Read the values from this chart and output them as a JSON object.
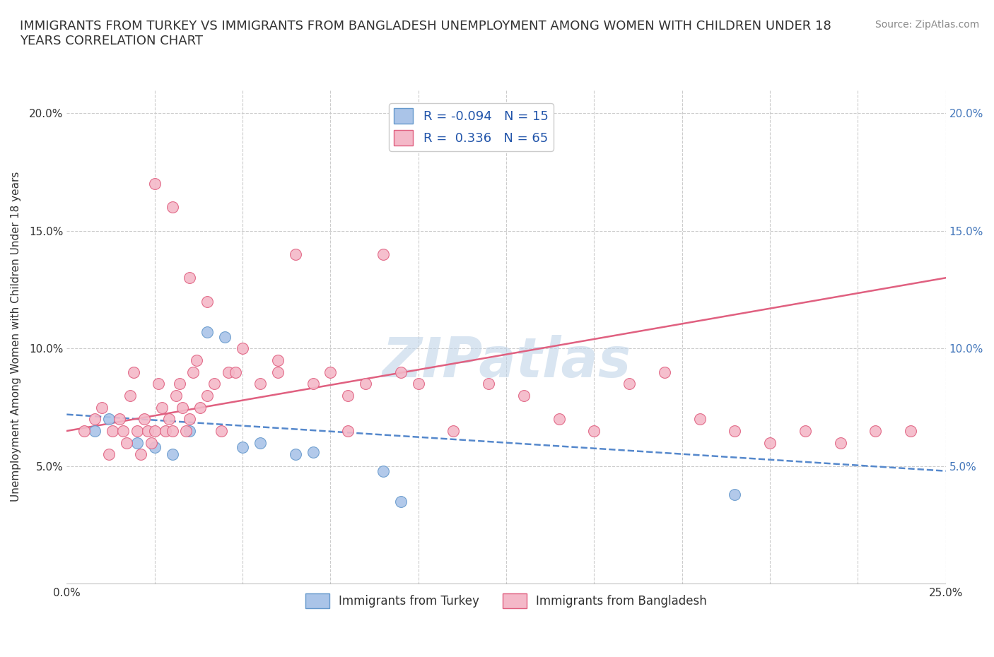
{
  "title": "IMMIGRANTS FROM TURKEY VS IMMIGRANTS FROM BANGLADESH UNEMPLOYMENT AMONG WOMEN WITH CHILDREN UNDER 18\nYEARS CORRELATION CHART",
  "source_text": "Source: ZipAtlas.com",
  "ylabel": "Unemployment Among Women with Children Under 18 years",
  "xlim": [
    0.0,
    0.25
  ],
  "ylim": [
    0.0,
    0.21
  ],
  "xticks": [
    0.0,
    0.025,
    0.05,
    0.075,
    0.1,
    0.125,
    0.15,
    0.175,
    0.2,
    0.225,
    0.25
  ],
  "xticklabels": [
    "0.0%",
    "",
    "",
    "",
    "",
    "",
    "",
    "",
    "",
    "",
    "25.0%"
  ],
  "yticks": [
    0.0,
    0.05,
    0.1,
    0.15,
    0.2
  ],
  "yticklabels": [
    "",
    "5.0%",
    "10.0%",
    "15.0%",
    "20.0%"
  ],
  "background_color": "#ffffff",
  "grid_color": "#cccccc",
  "watermark_text": "ZIPatlas",
  "watermark_color": "#c0d4e8",
  "series": [
    {
      "name": "Immigrants from Turkey",
      "R": -0.094,
      "N": 15,
      "color": "#aac4e8",
      "edge_color": "#6699cc",
      "x": [
        0.008,
        0.012,
        0.02,
        0.025,
        0.03,
        0.035,
        0.04,
        0.045,
        0.05,
        0.055,
        0.065,
        0.07,
        0.09,
        0.095,
        0.19
      ],
      "y": [
        0.065,
        0.07,
        0.06,
        0.058,
        0.055,
        0.065,
        0.107,
        0.105,
        0.058,
        0.06,
        0.055,
        0.056,
        0.048,
        0.035,
        0.038
      ],
      "trend_x": [
        0.0,
        0.25
      ],
      "trend_y": [
        0.072,
        0.048
      ],
      "trend_style": "dashed",
      "trend_color": "#5588cc"
    },
    {
      "name": "Immigrants from Bangladesh",
      "R": 0.336,
      "N": 65,
      "color": "#f4b8c8",
      "edge_color": "#e06080",
      "x": [
        0.005,
        0.008,
        0.01,
        0.012,
        0.013,
        0.015,
        0.016,
        0.017,
        0.018,
        0.019,
        0.02,
        0.021,
        0.022,
        0.023,
        0.024,
        0.025,
        0.026,
        0.027,
        0.028,
        0.029,
        0.03,
        0.031,
        0.032,
        0.033,
        0.034,
        0.035,
        0.036,
        0.037,
        0.038,
        0.04,
        0.042,
        0.044,
        0.046,
        0.048,
        0.05,
        0.055,
        0.06,
        0.065,
        0.07,
        0.075,
        0.08,
        0.085,
        0.09,
        0.095,
        0.1,
        0.11,
        0.12,
        0.13,
        0.14,
        0.15,
        0.16,
        0.17,
        0.18,
        0.19,
        0.2,
        0.21,
        0.22,
        0.23,
        0.24,
        0.025,
        0.03,
        0.035,
        0.04,
        0.06,
        0.08
      ],
      "y": [
        0.065,
        0.07,
        0.075,
        0.055,
        0.065,
        0.07,
        0.065,
        0.06,
        0.08,
        0.09,
        0.065,
        0.055,
        0.07,
        0.065,
        0.06,
        0.065,
        0.085,
        0.075,
        0.065,
        0.07,
        0.065,
        0.08,
        0.085,
        0.075,
        0.065,
        0.07,
        0.09,
        0.095,
        0.075,
        0.08,
        0.085,
        0.065,
        0.09,
        0.09,
        0.1,
        0.085,
        0.09,
        0.14,
        0.085,
        0.09,
        0.08,
        0.085,
        0.14,
        0.09,
        0.085,
        0.065,
        0.085,
        0.08,
        0.07,
        0.065,
        0.085,
        0.09,
        0.07,
        0.065,
        0.06,
        0.065,
        0.06,
        0.065,
        0.065,
        0.17,
        0.16,
        0.13,
        0.12,
        0.095,
        0.065
      ],
      "trend_x": [
        0.0,
        0.25
      ],
      "trend_y": [
        0.065,
        0.13
      ],
      "trend_style": "solid",
      "trend_color": "#e06080"
    }
  ]
}
